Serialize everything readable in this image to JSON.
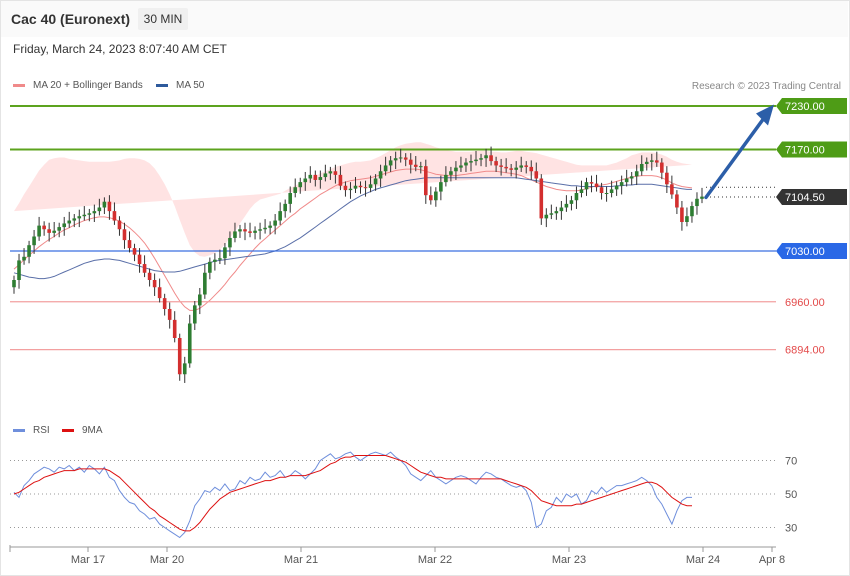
{
  "header": {
    "title": "Cac 40 (Euronext)",
    "timeframe": "30 MIN",
    "date": "Friday, March 24, 2023 8:07:40 AM CET",
    "credit": "Research © 2023 Trading Central"
  },
  "legend": {
    "ma20_label": "MA 20 + Bollinger Bands",
    "ma50_label": "MA 50",
    "rsi_label": "RSI",
    "ma9_label": "9MA"
  },
  "colors": {
    "resistance": "#5ca31e",
    "support": "#3b6fe0",
    "target": "#e34a4a",
    "candle_up": "#2e7d32",
    "candle_down": "#d32f2f",
    "band_fill": "#ffe3e3",
    "ma20": "#f08a8a",
    "ma50": "#5a6fa8",
    "rsi": "#6f8fdc",
    "rsi_ma": "#dd1111",
    "arrow": "#2c5ea8",
    "last_price_bg": "#333333"
  },
  "levels": [
    {
      "value": "7230.00",
      "kind": "resistance"
    },
    {
      "value": "7170.00",
      "kind": "resistance"
    },
    {
      "value": "7104.50",
      "kind": "last"
    },
    {
      "value": "7030.00",
      "kind": "support"
    },
    {
      "value": "6960.00",
      "kind": "target"
    },
    {
      "value": "6894.00",
      "kind": "target"
    }
  ],
  "x_axis": {
    "labels": [
      "Mar 17",
      "Mar 20",
      "Mar 21",
      "Mar 22",
      "Mar 23",
      "Mar 24",
      "Apr 8"
    ]
  },
  "rsi_axis": {
    "labels": [
      "70",
      "50",
      "30"
    ]
  },
  "chart_data": [
    {
      "type": "candlestick",
      "title": "Cac 40 (Euronext)",
      "timeframe": "30 MIN",
      "ylim": [
        6820,
        7260
      ],
      "last_price": 7104.5,
      "projection": {
        "from": 7104,
        "to": 7228
      },
      "levels": [
        7230,
        7170,
        7104.5,
        7030,
        6960,
        6894
      ],
      "closes": [
        6990,
        7017,
        7022,
        7038,
        7050,
        7065,
        7060,
        7055,
        7058,
        7063,
        7068,
        7072,
        7075,
        7078,
        7080,
        7082,
        7085,
        7090,
        7098,
        7085,
        7072,
        7060,
        7045,
        7034,
        7025,
        7012,
        7000,
        6990,
        6980,
        6965,
        6950,
        6935,
        6910,
        6860,
        6875,
        6930,
        6955,
        6970,
        7000,
        7015,
        7018,
        7020,
        7035,
        7048,
        7057,
        7060,
        7057,
        7055,
        7058,
        7060,
        7062,
        7065,
        7072,
        7085,
        7095,
        7110,
        7118,
        7125,
        7130,
        7135,
        7128,
        7132,
        7137,
        7140,
        7135,
        7120,
        7114,
        7116,
        7120,
        7118,
        7117,
        7122,
        7130,
        7140,
        7148,
        7155,
        7158,
        7159,
        7156,
        7149,
        7146,
        7147,
        7107,
        7100,
        7112,
        7125,
        7135,
        7140,
        7145,
        7148,
        7152,
        7154,
        7156,
        7158,
        7162,
        7154,
        7148,
        7146,
        7144,
        7142,
        7145,
        7148,
        7146,
        7140,
        7130,
        7075,
        7080,
        7082,
        7085,
        7090,
        7095,
        7100,
        7110,
        7115,
        7125,
        7123,
        7118,
        7110,
        7110,
        7115,
        7120,
        7125,
        7130,
        7133,
        7140,
        7150,
        7153,
        7155,
        7152,
        7138,
        7122,
        7108,
        7090,
        7070,
        7078,
        7092,
        7102,
        7105
      ],
      "ma20": [
        7005,
        7011,
        7018,
        7024,
        7030,
        7036,
        7041,
        7046,
        7050,
        7055,
        7059,
        7062,
        7066,
        7069,
        7072,
        7074,
        7076,
        7077,
        7077,
        7076,
        7074,
        7071,
        7067,
        7062,
        7056,
        7049,
        7041,
        7031,
        7020,
        7008,
        6996,
        6984,
        6972,
        6961,
        6953,
        6948,
        6948,
        6951,
        6956,
        6962,
        6969,
        6976,
        6984,
        6993,
        7001,
        7010,
        7018,
        7026,
        7034,
        7041,
        7047,
        7053,
        7059,
        7065,
        7071,
        7077,
        7082,
        7088,
        7093,
        7098,
        7103,
        7108,
        7112,
        7116,
        7120,
        7123,
        7125,
        7127,
        7128,
        7129,
        7130,
        7131,
        7133,
        7135,
        7137,
        7139,
        7141,
        7142,
        7143,
        7143,
        7143,
        7142,
        7140,
        7138,
        7136,
        7135,
        7134,
        7134,
        7134,
        7135,
        7136,
        7137,
        7138,
        7139,
        7140,
        7140,
        7140,
        7139,
        7138,
        7137,
        7136,
        7134,
        7131,
        7128,
        7125,
        7122,
        7119,
        7117,
        7115,
        7114,
        7113,
        7113,
        7113,
        7114,
        7116,
        7118,
        7120,
        7121,
        7122,
        7124,
        7126,
        7128,
        7130,
        7132,
        7133,
        7134,
        7134,
        7134,
        7133,
        7131,
        7128,
        7124,
        7121,
        7119,
        7118,
        7117
      ],
      "ma50": [
        7000,
        6998,
        6996,
        6994,
        6993,
        6992,
        6992,
        6993,
        6995,
        6998,
        7001,
        7004,
        7007,
        7010,
        7013,
        7015,
        7017,
        7018,
        7019,
        7019,
        7018,
        7017,
        7015,
        7013,
        7011,
        7009,
        7007,
        7005,
        7003,
        7002,
        7001,
        7001,
        7001,
        7002,
        7004,
        7006,
        7008,
        7010,
        7012,
        7014,
        7016,
        7017,
        7018,
        7019,
        7020,
        7021,
        7022,
        7023,
        7024,
        7025,
        7026,
        7028,
        7030,
        7033,
        7036,
        7040,
        7044,
        7048,
        7053,
        7058,
        7063,
        7068,
        7073,
        7078,
        7083,
        7088,
        7093,
        7098,
        7102,
        7106,
        7109,
        7112,
        7115,
        7117,
        7119,
        7121,
        7123,
        7125,
        7127,
        7128,
        7129,
        7130,
        7131,
        7131,
        7131,
        7131,
        7131,
        7131,
        7131,
        7131,
        7131,
        7131,
        7131,
        7131,
        7131,
        7131,
        7131,
        7131,
        7131,
        7131,
        7131,
        7130,
        7129,
        7128,
        7127,
        7126,
        7125,
        7124,
        7123,
        7122,
        7121,
        7120,
        7120,
        7119,
        7119,
        7119,
        7119,
        7119,
        7119,
        7119,
        7120,
        7120,
        7121,
        7121,
        7122,
        7122,
        7122,
        7122,
        7121,
        7120,
        7119,
        7118,
        7117,
        7116,
        7115,
        7115
      ],
      "bb_width": [
        80,
        85,
        90,
        95,
        100,
        105,
        108,
        110,
        108,
        104,
        100,
        95,
        90,
        86,
        82,
        79,
        77,
        76,
        76,
        77,
        80,
        84,
        90,
        96,
        102,
        108,
        114,
        120,
        124,
        126,
        126,
        124,
        120,
        112,
        102,
        90,
        80,
        72,
        66,
        62,
        58,
        56,
        55,
        55,
        56,
        58,
        60,
        62,
        62,
        60,
        56,
        52,
        48,
        44,
        42,
        40,
        38,
        36,
        34,
        32,
        30,
        29,
        28,
        27,
        26,
        25,
        25,
        25,
        25,
        24,
        24,
        24,
        25,
        26,
        28,
        30,
        32,
        34,
        35,
        36,
        37,
        38,
        38,
        38,
        37,
        36,
        35,
        34,
        33,
        32,
        31,
        30,
        30,
        29,
        28,
        27,
        27,
        27,
        28,
        30,
        32,
        34,
        36,
        38,
        40,
        41,
        42,
        42,
        42,
        41,
        40,
        38,
        36,
        34,
        32,
        30,
        28,
        27,
        26,
        26,
        26,
        27,
        28,
        30,
        31,
        32,
        32,
        32,
        32,
        32,
        32,
        32,
        32,
        32,
        32,
        32
      ]
    },
    {
      "type": "line",
      "title": "RSI",
      "ylim": [
        20,
        80
      ],
      "reference_lines": [
        70,
        50,
        30
      ],
      "series": [
        {
          "name": "RSI",
          "values": [
            51,
            48,
            55,
            58,
            62,
            64,
            66,
            65,
            63,
            66,
            65,
            67,
            64,
            66,
            63,
            67,
            65,
            62,
            66,
            60,
            58,
            52,
            48,
            45,
            44,
            40,
            38,
            35,
            36,
            32,
            30,
            28,
            26,
            24,
            27,
            34,
            43,
            47,
            52,
            51,
            54,
            52,
            56,
            52,
            53,
            58,
            56,
            60,
            58,
            59,
            63,
            60,
            61,
            64,
            60,
            61,
            64,
            62,
            59,
            62,
            65,
            70,
            72,
            74,
            71,
            72,
            74,
            75,
            72,
            70,
            72,
            74,
            75,
            74,
            73,
            75,
            72,
            70,
            67,
            62,
            60,
            58,
            61,
            64,
            60,
            58,
            56,
            58,
            60,
            61,
            60,
            58,
            56,
            60,
            63,
            62,
            60,
            59,
            57,
            55,
            54,
            55,
            52,
            45,
            30,
            32,
            40,
            42,
            48,
            45,
            50,
            48,
            50,
            44,
            46,
            52,
            50,
            54,
            51,
            53,
            55,
            55,
            56,
            57,
            58,
            60,
            58,
            55,
            48,
            44,
            38,
            32,
            40,
            46,
            48,
            48
          ]
        },
        {
          "name": "9MA",
          "values": [
            50,
            51,
            53,
            55,
            57,
            58,
            60,
            61,
            62,
            63,
            64,
            64,
            64,
            65,
            65,
            65,
            65,
            65,
            65,
            64,
            62,
            60,
            57,
            54,
            51,
            48,
            45,
            42,
            40,
            37,
            35,
            33,
            31,
            29,
            28,
            28,
            30,
            33,
            37,
            41,
            44,
            47,
            49,
            51,
            52,
            53,
            54,
            55,
            56,
            57,
            58,
            58,
            59,
            60,
            60,
            61,
            61,
            61,
            61,
            62,
            63,
            64,
            66,
            68,
            69,
            71,
            72,
            72,
            73,
            73,
            73,
            73,
            73,
            73,
            73,
            72,
            71,
            70,
            69,
            67,
            65,
            63,
            62,
            61,
            60,
            60,
            59,
            59,
            59,
            59,
            59,
            59,
            59,
            59,
            59,
            59,
            59,
            59,
            58,
            57,
            56,
            55,
            54,
            52,
            49,
            46,
            45,
            44,
            43,
            43,
            43,
            43,
            44,
            44,
            45,
            46,
            47,
            48,
            49,
            50,
            51,
            52,
            53,
            54,
            55,
            56,
            57,
            57,
            56,
            54,
            51,
            48,
            46,
            44,
            43,
            43
          ]
        }
      ]
    }
  ]
}
